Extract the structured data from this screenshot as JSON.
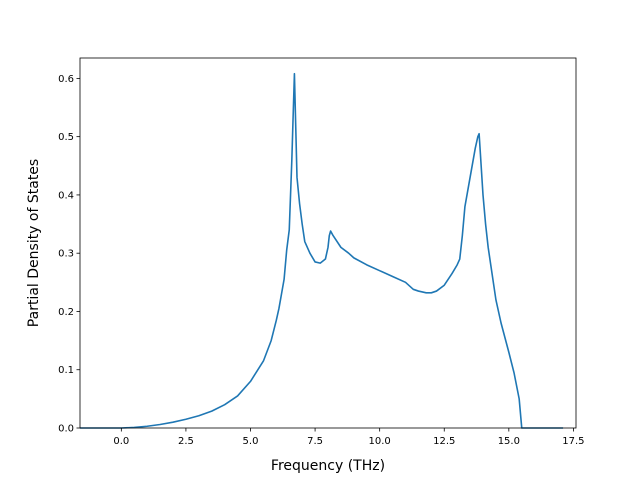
{
  "chart_data": {
    "type": "line",
    "title": "",
    "xlabel": "Frequency (THz)",
    "ylabel": "Partial Density of States",
    "xlim": [
      -1.6,
      17.6
    ],
    "ylim": [
      0.0,
      0.635
    ],
    "grid": false,
    "x_ticks": [
      0.0,
      2.5,
      5.0,
      7.5,
      10.0,
      12.5,
      15.0,
      17.5
    ],
    "x_tick_labels": [
      "0.0",
      "2.5",
      "5.0",
      "7.5",
      "10.0",
      "12.5",
      "15.0",
      "17.5"
    ],
    "y_ticks": [
      0.0,
      0.1,
      0.2,
      0.3,
      0.4,
      0.5,
      0.6
    ],
    "y_tick_labels": [
      "0.0",
      "0.1",
      "0.2",
      "0.3",
      "0.4",
      "0.5",
      "0.6"
    ],
    "color": "#1f77b4",
    "series": [
      {
        "x": [
          -1.6,
          0.0,
          0.5,
          1.0,
          1.5,
          2.0,
          2.5,
          3.0,
          3.5,
          4.0,
          4.5,
          5.0,
          5.5,
          5.8,
          6.0,
          6.1,
          6.2,
          6.3,
          6.4,
          6.5,
          6.55,
          6.6,
          6.65,
          6.7,
          6.8,
          6.9,
          7.0,
          7.1,
          7.3,
          7.5,
          7.7,
          7.9,
          8.0,
          8.05,
          8.1,
          8.2,
          8.5,
          8.8,
          9.0,
          9.5,
          10.0,
          10.5,
          11.0,
          11.3,
          11.5,
          11.8,
          12.0,
          12.2,
          12.5,
          12.8,
          13.0,
          13.1,
          13.2,
          13.3,
          13.5,
          13.7,
          13.8,
          13.85,
          13.9,
          14.0,
          14.1,
          14.2,
          14.3,
          14.5,
          14.7,
          15.0,
          15.2,
          15.4,
          15.5,
          15.55,
          16.0,
          17.1
        ],
        "y": [
          0.0,
          0.0,
          0.001,
          0.003,
          0.006,
          0.01,
          0.015,
          0.021,
          0.029,
          0.04,
          0.055,
          0.08,
          0.115,
          0.15,
          0.185,
          0.205,
          0.23,
          0.255,
          0.305,
          0.34,
          0.4,
          0.46,
          0.535,
          0.608,
          0.43,
          0.385,
          0.35,
          0.32,
          0.3,
          0.285,
          0.283,
          0.29,
          0.31,
          0.33,
          0.338,
          0.33,
          0.31,
          0.3,
          0.292,
          0.28,
          0.27,
          0.26,
          0.25,
          0.238,
          0.235,
          0.232,
          0.232,
          0.235,
          0.245,
          0.265,
          0.28,
          0.29,
          0.33,
          0.38,
          0.43,
          0.48,
          0.5,
          0.505,
          0.47,
          0.4,
          0.35,
          0.31,
          0.28,
          0.22,
          0.18,
          0.13,
          0.095,
          0.05,
          0.0,
          0.0,
          0.0,
          0.0
        ]
      }
    ]
  }
}
